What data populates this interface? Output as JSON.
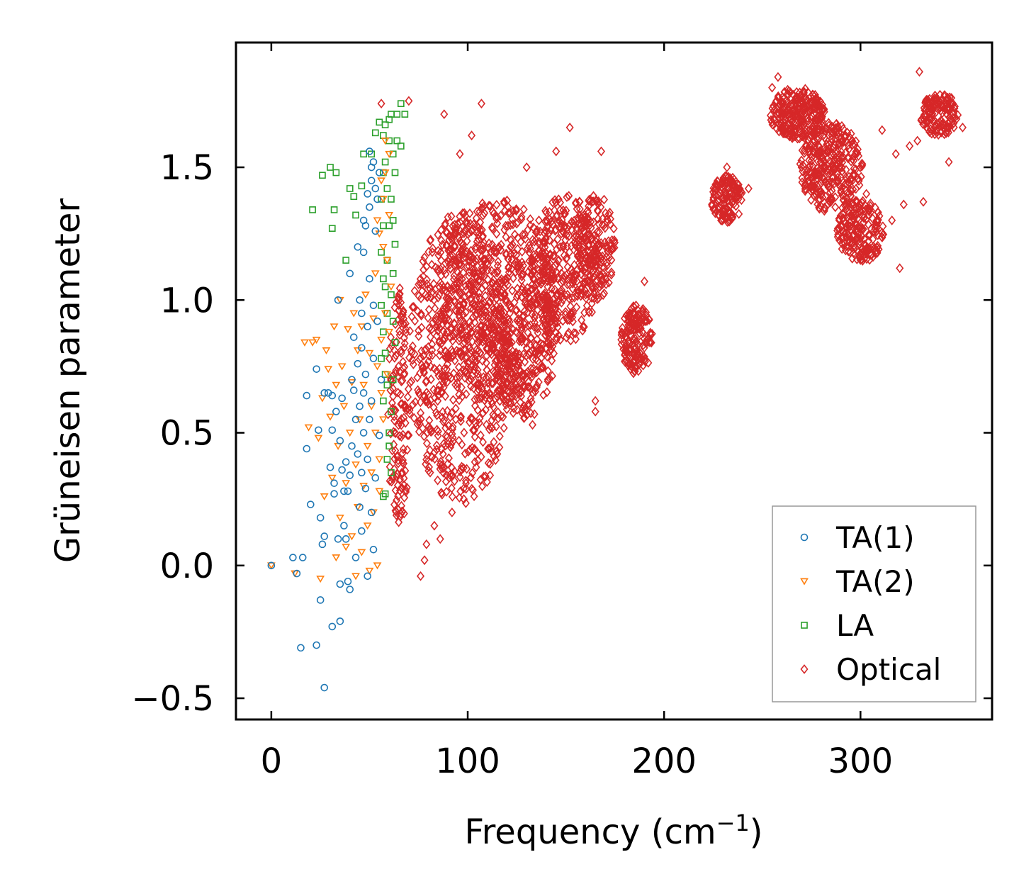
{
  "chart_data": {
    "type": "scatter",
    "title": "",
    "xlabel": "Frequency (cm",
    "xlabel_superscript": "−1",
    "xlabel_suffix": ")",
    "ylabel": "Grüneisen parameter",
    "xlim": [
      -18,
      367
    ],
    "ylim": [
      -0.58,
      1.97
    ],
    "xticks": [
      0,
      100,
      200,
      300
    ],
    "xtick_labels": [
      "0",
      "100",
      "200",
      "300"
    ],
    "yticks": [
      -0.5,
      0.0,
      0.5,
      1.0,
      1.5
    ],
    "ytick_labels": [
      "−0.5",
      "0.0",
      "0.5",
      "1.0",
      "1.5"
    ],
    "grid": false,
    "legend_position": "lower-right",
    "series": [
      {
        "name": "TA(1)",
        "marker": "circle",
        "color": "#1f77b4",
        "points": [
          [
            0,
            0
          ],
          [
            11,
            0.03
          ],
          [
            13,
            -0.03
          ],
          [
            16,
            0.03
          ],
          [
            15,
            -0.31
          ],
          [
            23,
            -0.3
          ],
          [
            27,
            -0.46
          ],
          [
            25,
            -0.13
          ],
          [
            31,
            -0.23
          ],
          [
            35,
            -0.21
          ],
          [
            18,
            0.44
          ],
          [
            18,
            0.64
          ],
          [
            20,
            0.23
          ],
          [
            23,
            0.74
          ],
          [
            24,
            0.51
          ],
          [
            25,
            0.18
          ],
          [
            26,
            0.08
          ],
          [
            27,
            0.11
          ],
          [
            27,
            0.65
          ],
          [
            29,
            0.65
          ],
          [
            30,
            0.37
          ],
          [
            31,
            0.51
          ],
          [
            31,
            0.64
          ],
          [
            32,
            0.27
          ],
          [
            32,
            0.31
          ],
          [
            33,
            0.58
          ],
          [
            34,
            0.1
          ],
          [
            35,
            0.47
          ],
          [
            35,
            -0.07
          ],
          [
            36,
            0.36
          ],
          [
            36,
            0.63
          ],
          [
            37,
            0.15
          ],
          [
            37,
            0.28
          ],
          [
            38,
            0.1
          ],
          [
            38,
            0.39
          ],
          [
            39,
            0.28
          ],
          [
            39,
            -0.06
          ],
          [
            40,
            0.34
          ],
          [
            40,
            -0.09
          ],
          [
            41,
            0.45
          ],
          [
            41,
            0.7
          ],
          [
            42,
            0.66
          ],
          [
            42,
            0.86
          ],
          [
            43,
            0.03
          ],
          [
            43,
            0.55
          ],
          [
            44,
            0.42
          ],
          [
            44,
            0.76
          ],
          [
            45,
            0.22
          ],
          [
            45,
            0.6
          ],
          [
            45,
            1.0
          ],
          [
            46,
            0.13
          ],
          [
            46,
            0.35
          ],
          [
            46,
            0.82
          ],
          [
            47,
            0.5
          ],
          [
            47,
            0.65
          ],
          [
            47,
            1.18
          ],
          [
            48,
            0.29
          ],
          [
            48,
            0.72
          ],
          [
            48,
            1.28
          ],
          [
            49,
            0.4
          ],
          [
            49,
            0.9
          ],
          [
            49,
            -0.04
          ],
          [
            50,
            0.55
          ],
          [
            50,
            1.08
          ],
          [
            50,
            1.35
          ],
          [
            51,
            0.2
          ],
          [
            51,
            0.62
          ],
          [
            51,
            1.45
          ],
          [
            52,
            0.78
          ],
          [
            52,
            1.52
          ],
          [
            52,
            0.06
          ],
          [
            53,
            0.33
          ],
          [
            53,
            1.42
          ],
          [
            54,
            0.92
          ],
          [
            54,
            1.38
          ],
          [
            55,
            0.49
          ],
          [
            55,
            1.48
          ],
          [
            56,
            0.7
          ],
          [
            34,
            1.0
          ],
          [
            40,
            1.1
          ],
          [
            44,
            1.2
          ],
          [
            47,
            1.3
          ],
          [
            49,
            1.4
          ],
          [
            51,
            1.5
          ],
          [
            50,
            1.56
          ],
          [
            53,
            1.26
          ],
          [
            46,
            0.95
          ],
          [
            52,
            0.98
          ]
        ]
      },
      {
        "name": "TA(2)",
        "marker": "triangle-down",
        "color": "#ff7f0e",
        "points": [
          [
            0,
            0
          ],
          [
            12,
            -0.03
          ],
          [
            17,
            0.84
          ],
          [
            19,
            0.52
          ],
          [
            21,
            0.84
          ],
          [
            23,
            0.85
          ],
          [
            24,
            0.48
          ],
          [
            25,
            -0.05
          ],
          [
            26,
            0.63
          ],
          [
            27,
            0.26
          ],
          [
            28,
            0.81
          ],
          [
            29,
            0.74
          ],
          [
            30,
            0.56
          ],
          [
            31,
            0.33
          ],
          [
            32,
            0.9
          ],
          [
            33,
            0.03
          ],
          [
            33,
            0.68
          ],
          [
            34,
            0.45
          ],
          [
            35,
            0.18
          ],
          [
            35,
            1.0
          ],
          [
            36,
            0.75
          ],
          [
            37,
            0.6
          ],
          [
            38,
            0.07
          ],
          [
            38,
            0.31
          ],
          [
            39,
            0.89
          ],
          [
            40,
            0.5
          ],
          [
            41,
            0.11
          ],
          [
            41,
            0.69
          ],
          [
            42,
            0.95
          ],
          [
            43,
            0.38
          ],
          [
            43,
            -0.04
          ],
          [
            44,
            0.81
          ],
          [
            44,
            0.22
          ],
          [
            45,
            0.55
          ],
          [
            46,
            0.9
          ],
          [
            46,
            0.05
          ],
          [
            47,
            0.3
          ],
          [
            47,
            0.68
          ],
          [
            48,
            1.02
          ],
          [
            49,
            0.45
          ],
          [
            49,
            0.15
          ],
          [
            50,
            0.8
          ],
          [
            50,
            -0.02
          ],
          [
            51,
            0.6
          ],
          [
            51,
            0.35
          ],
          [
            52,
            0.93
          ],
          [
            52,
            0.2
          ],
          [
            53,
            0.5
          ],
          [
            53,
            1.1
          ],
          [
            54,
            0.75
          ],
          [
            54,
            0.0
          ],
          [
            55,
            0.4
          ],
          [
            55,
            1.25
          ],
          [
            56,
            0.65
          ],
          [
            56,
            0.85
          ],
          [
            57,
            0.55
          ],
          [
            57,
            1.38
          ],
          [
            58,
            0.95
          ],
          [
            58,
            1.48
          ],
          [
            59,
            1.15
          ],
          [
            59,
            0.72
          ],
          [
            60,
            1.32
          ],
          [
            60,
            1.55
          ],
          [
            61,
            1.05
          ],
          [
            56,
            1.45
          ],
          [
            57,
            1.2
          ],
          [
            58,
            1.6
          ],
          [
            54,
            1.3
          ],
          [
            55,
            0.28
          ],
          [
            60,
            0.88
          ]
        ]
      },
      {
        "name": "LA",
        "marker": "square",
        "color": "#2ca02c",
        "points": [
          [
            21,
            1.34
          ],
          [
            26,
            1.47
          ],
          [
            30,
            1.5
          ],
          [
            33,
            1.48
          ],
          [
            31,
            1.27
          ],
          [
            32,
            1.34
          ],
          [
            38,
            1.15
          ],
          [
            40,
            1.42
          ],
          [
            42,
            1.39
          ],
          [
            43,
            1.32
          ],
          [
            46,
            1.43
          ],
          [
            47,
            1.55
          ],
          [
            51,
            1.55
          ],
          [
            53,
            1.63
          ],
          [
            55,
            1.67
          ],
          [
            57,
            1.62
          ],
          [
            58,
            1.66
          ],
          [
            60,
            1.68
          ],
          [
            61,
            1.7
          ],
          [
            64,
            1.7
          ],
          [
            66,
            1.74
          ],
          [
            68,
            1.7
          ],
          [
            64,
            1.6
          ],
          [
            66,
            1.58
          ],
          [
            57,
            0.26
          ],
          [
            58,
            0.27
          ],
          [
            59,
            0.4
          ],
          [
            60,
            0.5
          ],
          [
            61,
            0.58
          ],
          [
            62,
            0.7
          ],
          [
            63,
            0.84
          ],
          [
            62,
            0.92
          ],
          [
            61,
            1.02
          ],
          [
            62,
            1.1
          ],
          [
            63,
            1.21
          ],
          [
            62,
            1.3
          ],
          [
            61,
            1.38
          ],
          [
            63,
            1.48
          ],
          [
            62,
            1.55
          ],
          [
            60,
            1.6
          ],
          [
            58,
            1.52
          ],
          [
            59,
            1.42
          ],
          [
            60,
            1.28
          ],
          [
            59,
            1.15
          ],
          [
            58,
            1.05
          ],
          [
            59,
            0.95
          ],
          [
            58,
            0.8
          ],
          [
            59,
            0.68
          ],
          [
            60,
            0.45
          ],
          [
            61,
            0.35
          ],
          [
            57,
            0.62
          ],
          [
            58,
            0.72
          ],
          [
            56,
            0.78
          ],
          [
            57,
            0.88
          ],
          [
            56,
            0.98
          ],
          [
            57,
            1.08
          ],
          [
            56,
            1.18
          ],
          [
            57,
            1.28
          ],
          [
            56,
            1.38
          ],
          [
            57,
            1.48
          ]
        ]
      },
      {
        "name": "Optical",
        "marker": "diamond",
        "color": "#d62728",
        "blobs": [
          {
            "cx": 96,
            "cy": 0.78,
            "rx": 26,
            "ry": 0.55,
            "n": 650
          },
          {
            "cx": 116,
            "cy": 1.0,
            "rx": 30,
            "ry": 0.38,
            "n": 520
          },
          {
            "cx": 128,
            "cy": 0.9,
            "rx": 18,
            "ry": 0.35,
            "n": 260
          },
          {
            "cx": 150,
            "cy": 1.12,
            "rx": 18,
            "ry": 0.28,
            "n": 320
          },
          {
            "cx": 165,
            "cy": 1.2,
            "rx": 10,
            "ry": 0.2,
            "n": 160
          },
          {
            "cx": 186,
            "cy": 0.85,
            "rx": 8,
            "ry": 0.13,
            "n": 170
          },
          {
            "cx": 232,
            "cy": 1.38,
            "rx": 8,
            "ry": 0.09,
            "n": 130
          },
          {
            "cx": 268,
            "cy": 1.7,
            "rx": 14,
            "ry": 0.1,
            "n": 260
          },
          {
            "cx": 285,
            "cy": 1.5,
            "rx": 16,
            "ry": 0.17,
            "n": 320
          },
          {
            "cx": 300,
            "cy": 1.26,
            "rx": 12,
            "ry": 0.12,
            "n": 200
          },
          {
            "cx": 340,
            "cy": 1.7,
            "rx": 10,
            "ry": 0.08,
            "n": 140
          },
          {
            "cx": 65,
            "cy": 0.6,
            "rx": 6,
            "ry": 0.45,
            "n": 150
          }
        ],
        "outliers": [
          [
            56,
            1.74
          ],
          [
            70,
            1.75
          ],
          [
            88,
            1.7
          ],
          [
            107,
            1.74
          ],
          [
            102,
            1.62
          ],
          [
            96,
            1.55
          ],
          [
            152,
            1.65
          ],
          [
            145,
            1.56
          ],
          [
            168,
            1.56
          ],
          [
            130,
            1.5
          ],
          [
            76,
            -0.04
          ],
          [
            78,
            0.02
          ],
          [
            79,
            0.08
          ],
          [
            86,
            0.1
          ],
          [
            83,
            0.15
          ],
          [
            92,
            0.2
          ],
          [
            98,
            0.29
          ],
          [
            112,
            0.43
          ],
          [
            133,
            0.53
          ],
          [
            165,
            0.58
          ],
          [
            165,
            0.62
          ],
          [
            190,
            1.07
          ],
          [
            243,
            1.42
          ],
          [
            311,
            1.64
          ],
          [
            318,
            1.55
          ],
          [
            325,
            1.58
          ],
          [
            329,
            1.6
          ],
          [
            332,
            1.37
          ],
          [
            322,
            1.36
          ],
          [
            316,
            1.3
          ],
          [
            320,
            1.12
          ],
          [
            303,
            1.4
          ],
          [
            352,
            1.65
          ],
          [
            270,
            1.5
          ],
          [
            263,
            1.77
          ],
          [
            255,
            1.8
          ],
          [
            258,
            1.84
          ],
          [
            330,
            1.86
          ],
          [
            345,
            1.52
          ],
          [
            232,
            1.5
          ],
          [
            226,
            1.42
          ],
          [
            229,
            1.3
          ]
        ]
      }
    ]
  }
}
